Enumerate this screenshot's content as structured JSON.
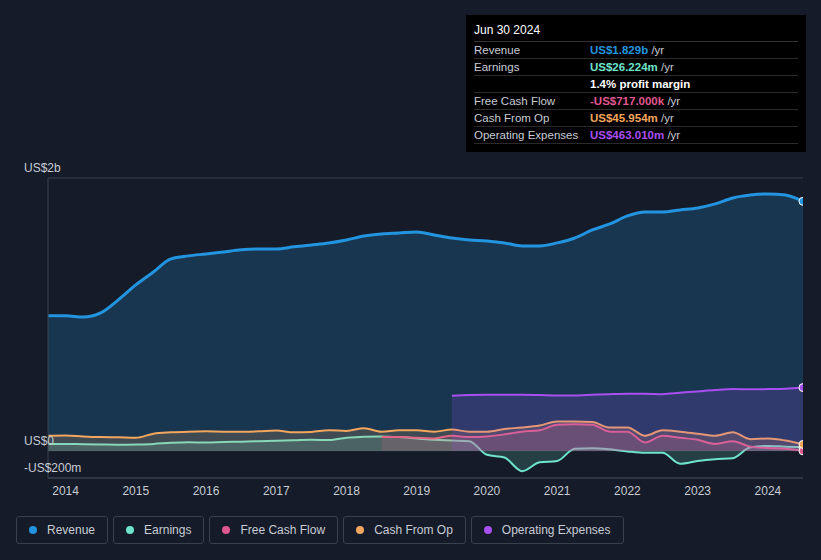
{
  "chart_data": {
    "type": "area",
    "x": [
      2013.75,
      2014,
      2014.25,
      2014.5,
      2014.75,
      2015,
      2015.25,
      2015.5,
      2015.75,
      2016,
      2016.25,
      2016.5,
      2016.75,
      2017,
      2017.25,
      2017.5,
      2017.75,
      2018,
      2018.25,
      2018.5,
      2018.75,
      2019,
      2019.25,
      2019.5,
      2019.75,
      2020,
      2020.25,
      2020.5,
      2020.75,
      2021,
      2021.25,
      2021.5,
      2021.75,
      2022,
      2022.25,
      2022.5,
      2022.75,
      2023,
      2023.25,
      2023.5,
      2023.75,
      2024,
      2024.25,
      2024.5
    ],
    "xlim": [
      2013.75,
      2024.5
    ],
    "xticks": [
      2014,
      2015,
      2016,
      2017,
      2018,
      2019,
      2020,
      2021,
      2022,
      2023,
      2024
    ],
    "ylim": [
      -200,
      2000
    ],
    "yticks": [
      {
        "value": -200,
        "label": "-US$200m"
      },
      {
        "value": 0,
        "label": "US$0"
      },
      {
        "value": 2000,
        "label": "US$2b"
      }
    ],
    "grid": true,
    "legend": "bottom",
    "series": [
      {
        "name": "Revenue",
        "color": "#2394df",
        "values": [
          989,
          989,
          980,
          1011,
          1106,
          1216,
          1311,
          1407,
          1429,
          1443,
          1458,
          1473,
          1480,
          1480,
          1495,
          1509,
          1524,
          1546,
          1575,
          1590,
          1597,
          1604,
          1582,
          1560,
          1546,
          1538,
          1524,
          1502,
          1502,
          1524,
          1560,
          1619,
          1663,
          1722,
          1751,
          1751,
          1766,
          1780,
          1810,
          1853,
          1875,
          1883,
          1875,
          1829
        ]
      },
      {
        "name": "Earnings",
        "color": "#6fe3cb",
        "values": [
          50,
          50,
          48,
          46,
          44,
          46,
          50,
          58,
          62,
          60,
          64,
          66,
          70,
          74,
          76,
          80,
          78,
          95,
          103,
          105,
          100,
          90,
          80,
          75,
          70,
          -30,
          -50,
          -150,
          -85,
          -75,
          15,
          18,
          10,
          -5,
          -15,
          -15,
          -95,
          -75,
          -62,
          -55,
          25,
          35,
          30,
          26.224
        ]
      },
      {
        "name": "Free Cash Flow",
        "color": "#e0578f",
        "values": [
          null,
          null,
          null,
          null,
          null,
          null,
          null,
          null,
          null,
          null,
          null,
          null,
          null,
          null,
          null,
          null,
          null,
          null,
          null,
          100,
          100,
          95,
          90,
          110,
          100,
          105,
          120,
          140,
          150,
          190,
          195,
          190,
          140,
          140,
          60,
          110,
          95,
          80,
          50,
          70,
          30,
          20,
          15,
          -0.717
        ]
      },
      {
        "name": "Cash From Op",
        "color": "#f2a65e",
        "values": [
          110,
          112,
          105,
          100,
          98,
          95,
          125,
          135,
          140,
          142,
          140,
          140,
          142,
          148,
          135,
          138,
          150,
          145,
          165,
          140,
          150,
          150,
          140,
          155,
          140,
          140,
          160,
          170,
          185,
          215,
          215,
          210,
          170,
          170,
          110,
          150,
          140,
          125,
          110,
          135,
          85,
          90,
          75,
          45.954
        ]
      },
      {
        "name": "Operating Expenses",
        "color": "#a84ff0",
        "values": [
          null,
          null,
          null,
          null,
          null,
          null,
          null,
          null,
          null,
          null,
          null,
          null,
          null,
          null,
          null,
          null,
          null,
          null,
          null,
          null,
          null,
          null,
          null,
          403,
          408,
          410,
          410,
          410,
          408,
          405,
          405,
          410,
          415,
          418,
          418,
          415,
          425,
          435,
          445,
          452,
          450,
          452,
          455,
          463.01
        ]
      }
    ],
    "annotations": {
      "title": "Jun 30 2024",
      "rows": [
        {
          "label": "Revenue",
          "value": "US$1.829b",
          "unit": "/yr"
        },
        {
          "label": "Earnings",
          "value": "US$26.224m",
          "unit": "/yr"
        },
        {
          "value": "1.4% profit margin"
        },
        {
          "label": "Free Cash Flow",
          "value": "-US$717.000k",
          "unit": "/yr"
        },
        {
          "label": "Cash From Op",
          "value": "US$45.954m",
          "unit": "/yr"
        },
        {
          "label": "Operating Expenses",
          "value": "US$463.010m",
          "unit": "/yr"
        }
      ]
    }
  }
}
